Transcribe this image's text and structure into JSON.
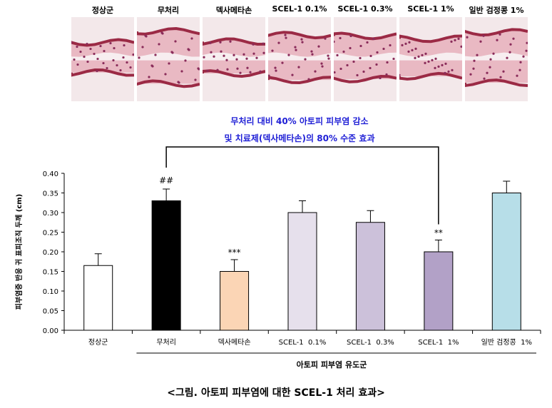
{
  "histology_panels": {
    "labels": [
      "정상군",
      "무처리",
      "덱사메타손",
      "SCEL-1 0.1%",
      "SCEL-1 0.3%",
      "SCEL-1  1%",
      "일반 검정콩 1%"
    ]
  },
  "annotation": {
    "line1": "무처리 대비 40% 아토피 피부염 감소",
    "line2": "및 치료제(덱사메타손)의 80% 수준 효과",
    "color": "#1f1fd6"
  },
  "chart_data": {
    "type": "bar",
    "ylabel": "피부염증 반응 귀 표피조직 두께 (cm)",
    "xgroup_label": "아토피 피부염 유도군",
    "ylim": [
      0,
      0.4
    ],
    "yticks": [
      "0.00",
      "0.05",
      "0.10",
      "0.15",
      "0.20",
      "0.25",
      "0.30",
      "0.35",
      "0.40"
    ],
    "categories": [
      "정상군",
      "무처리",
      "덱사메타손",
      "SCEL-1  0.1%",
      "SCEL-1  0.3%",
      "SCEL-1  1%",
      "일반 검정콩  1%"
    ],
    "values": [
      0.165,
      0.33,
      0.15,
      0.3,
      0.275,
      0.2,
      0.35
    ],
    "errors": [
      0.03,
      0.03,
      0.03,
      0.03,
      0.03,
      0.03,
      0.03
    ],
    "colors": [
      "#ffffff",
      "#000000",
      "#fbd5b5",
      "#e6e0ec",
      "#ccc1da",
      "#b2a1c7",
      "#b7dee8"
    ],
    "significance": [
      "",
      "##",
      "***",
      "",
      "",
      "**",
      ""
    ],
    "bracket": {
      "from_index": 1,
      "to_index": 5
    }
  },
  "caption": "<그림. 아토피 피부염에 대한 SCEL-1 처리 효과>"
}
